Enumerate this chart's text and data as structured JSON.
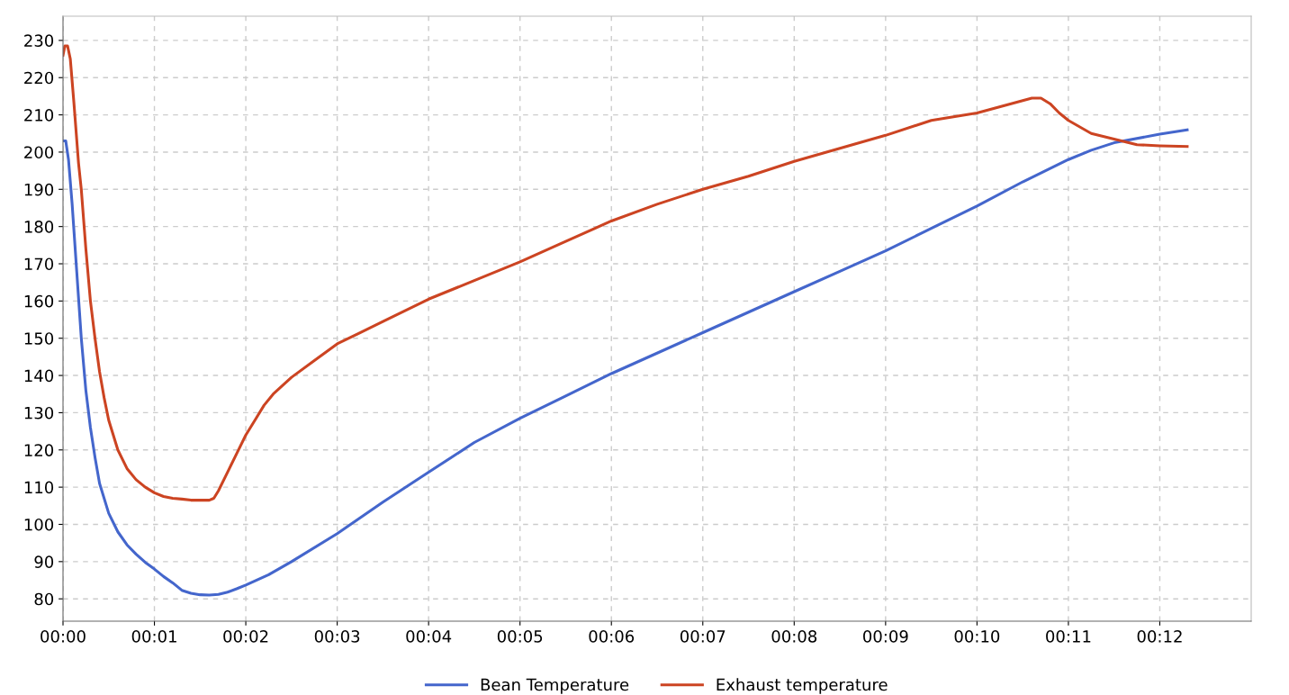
{
  "chart_data": {
    "type": "line",
    "xlim": [
      0,
      13
    ],
    "ylim": [
      74,
      236.5
    ],
    "xticks": [
      {
        "value": 0,
        "label": "00:00"
      },
      {
        "value": 1,
        "label": "00:01"
      },
      {
        "value": 2,
        "label": "00:02"
      },
      {
        "value": 3,
        "label": "00:03"
      },
      {
        "value": 4,
        "label": "00:04"
      },
      {
        "value": 5,
        "label": "00:05"
      },
      {
        "value": 6,
        "label": "00:06"
      },
      {
        "value": 7,
        "label": "00:07"
      },
      {
        "value": 8,
        "label": "00:08"
      },
      {
        "value": 9,
        "label": "00:09"
      },
      {
        "value": 10,
        "label": "00:10"
      },
      {
        "value": 11,
        "label": "00:11"
      },
      {
        "value": 12,
        "label": "00:12"
      }
    ],
    "yticks": [
      80,
      90,
      100,
      110,
      120,
      130,
      140,
      150,
      160,
      170,
      180,
      190,
      200,
      210,
      220,
      230
    ],
    "grid": true,
    "legend": "bottom",
    "marker": "none",
    "line_style": "solid",
    "series": [
      {
        "name": "Bean Temperature",
        "color": "#4466cc",
        "x": [
          0,
          0.03,
          0.06,
          0.1,
          0.15,
          0.2,
          0.25,
          0.3,
          0.35,
          0.4,
          0.5,
          0.6,
          0.7,
          0.8,
          0.9,
          1.0,
          1.1,
          1.2,
          1.3,
          1.4,
          1.5,
          1.6,
          1.7,
          1.8,
          1.9,
          2.0,
          2.25,
          2.5,
          3.0,
          3.5,
          4.0,
          4.5,
          5.0,
          5.5,
          6.0,
          6.5,
          7.0,
          7.5,
          8.0,
          8.5,
          9.0,
          9.5,
          10.0,
          10.5,
          11.0,
          11.25,
          11.5,
          12.0,
          12.3
        ],
        "values": [
          203,
          203,
          198,
          186,
          168,
          150,
          136,
          126,
          118,
          111,
          103,
          98,
          94.5,
          92,
          89.8,
          88,
          86,
          84.3,
          82.3,
          81.5,
          81.1,
          81,
          81.2,
          81.8,
          82.7,
          83.7,
          86.5,
          90,
          97.5,
          106,
          114,
          122,
          128.5,
          134.5,
          140.5,
          146,
          151.5,
          157,
          162.5,
          168,
          173.5,
          179.5,
          185.5,
          192,
          198,
          200.5,
          202.5,
          204.8,
          206
        ]
      },
      {
        "name": "Exhaust temperature",
        "color": "#cc4422",
        "x": [
          0,
          0.02,
          0.05,
          0.08,
          0.12,
          0.17,
          0.2,
          0.25,
          0.3,
          0.35,
          0.4,
          0.45,
          0.5,
          0.6,
          0.7,
          0.8,
          0.9,
          1.0,
          1.1,
          1.2,
          1.3,
          1.4,
          1.5,
          1.6,
          1.65,
          1.7,
          1.8,
          1.9,
          2.0,
          2.1,
          2.2,
          2.3,
          2.5,
          2.75,
          3.0,
          3.25,
          3.5,
          4.0,
          4.5,
          5.0,
          5.5,
          6.0,
          6.5,
          7.0,
          7.5,
          8.0,
          8.5,
          9.0,
          9.5,
          10.0,
          10.3,
          10.6,
          10.7,
          10.8,
          10.9,
          11.0,
          11.25,
          11.5,
          11.75,
          12.0,
          12.3
        ],
        "values": [
          226,
          228.5,
          228.5,
          225,
          213,
          197,
          190,
          174,
          160,
          150,
          141,
          134,
          128,
          120,
          115,
          112,
          110,
          108.5,
          107.5,
          107,
          106.8,
          106.5,
          106.5,
          106.5,
          107,
          109,
          114,
          119,
          124,
          128,
          132,
          135,
          139.5,
          144,
          148.5,
          151.5,
          154.5,
          160.5,
          165.5,
          170.5,
          176,
          181.5,
          186,
          190,
          193.5,
          197.5,
          201,
          204.5,
          208.5,
          210.5,
          212.5,
          214.5,
          214.5,
          213,
          210.5,
          208.5,
          205,
          203.5,
          202,
          201.7,
          201.5
        ]
      }
    ]
  }
}
